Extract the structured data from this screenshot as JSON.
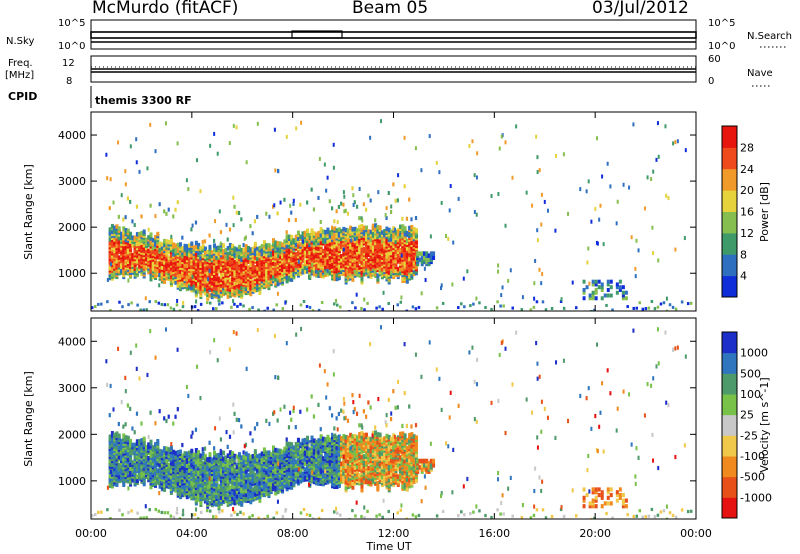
{
  "header": {
    "station": "McMurdo (fitACF)",
    "beam": "Beam 05",
    "date": "03/Jul/2012"
  },
  "top_panels": {
    "nsky_label": "N.Sky",
    "nsky_tick_hi": "10^5",
    "nsky_tick_lo": "10^0",
    "nsearch_label": "N.Search",
    "nsearch_tick_hi": "10^5",
    "nsearch_tick_lo": "10^0",
    "freq_label_1": "Freq.",
    "freq_label_2": "[MHz]",
    "freq_tick_hi": "12",
    "freq_tick_lo": "8",
    "nave_label": "Nave",
    "nave_tick_hi": "60",
    "nave_tick_lo": "0",
    "cpid_label": "CPID",
    "cpid_value": "themis 3300 RF"
  },
  "chart_data": [
    {
      "type": "heatmap",
      "title": "",
      "xlabel": "",
      "ylabel": "Slant Range [km]",
      "colorbar_label": "Power [dB]",
      "colorbar_ticks": [
        "4",
        "8",
        "12",
        "16",
        "20",
        "24",
        "28"
      ],
      "colormap": [
        "#0f2dd9",
        "#2f6fc0",
        "#3f9a6a",
        "#86bf4f",
        "#e6d23a",
        "#f09a2a",
        "#ee4a1c",
        "#e8150e"
      ],
      "xlim": [
        0,
        24
      ],
      "ylim": [
        180,
        4500
      ],
      "yticks": [
        1000,
        2000,
        3000,
        4000
      ],
      "regions": [
        {
          "name": "main echo band",
          "time_range": [
            0.7,
            12.9
          ],
          "range_km": [
            650,
            2000
          ],
          "power_db": "4-30",
          "dominant_power_db": 26
        },
        {
          "name": "second echo band",
          "time_range": [
            9.8,
            13.6
          ],
          "range_km": [
            700,
            2100
          ],
          "power_db": "8-30",
          "dominant_power_db": 22
        },
        {
          "name": "ground-range scatter",
          "time_range": [
            0,
            24
          ],
          "range_km": [
            180,
            400
          ],
          "power_db": "4-16"
        },
        {
          "name": "late evening patch",
          "time_range": [
            19.5,
            21.2
          ],
          "range_km": [
            500,
            900
          ],
          "power_db": "4-12"
        }
      ]
    },
    {
      "type": "heatmap",
      "title": "",
      "xlabel": "Time UT",
      "ylabel": "Slant Range [km]",
      "colorbar_label": "Velocity [m s^-1]",
      "colorbar_ticks": [
        "1000",
        "500",
        "100",
        "25",
        "-25",
        "-100",
        "-500",
        "-1000"
      ],
      "colormap": [
        "#1c2fc8",
        "#2f76bf",
        "#4f9a6a",
        "#78c24a",
        "#c8c8c8",
        "#f0c84a",
        "#f08a1e",
        "#e8501a",
        "#e61212"
      ],
      "xlim": [
        0,
        24
      ],
      "ylim": [
        180,
        4500
      ],
      "xticks": [
        "00:00",
        "04:00",
        "08:00",
        "12:00",
        "16:00",
        "20:00",
        "00:00"
      ],
      "yticks": [
        1000,
        2000,
        3000,
        4000
      ],
      "regions": [
        {
          "name": "main echo band",
          "time_range": [
            0.7,
            12.9
          ],
          "range_km": [
            650,
            2000
          ],
          "velocity_m_s": "mostly 100 to 1000",
          "dominant_velocity_m_s": 500
        },
        {
          "name": "second echo band",
          "time_range": [
            9.8,
            13.6
          ],
          "range_km": [
            700,
            2100
          ],
          "velocity_m_s": "mostly -500 to -25"
        },
        {
          "name": "ground-range scatter",
          "time_range": [
            0,
            24
          ],
          "range_km": [
            180,
            400
          ],
          "velocity_m_s": "-25 to 100"
        },
        {
          "name": "late evening patch",
          "time_range": [
            19.5,
            21.2
          ],
          "range_km": [
            500,
            900
          ],
          "velocity_m_s": "-500 to -100"
        }
      ]
    }
  ]
}
